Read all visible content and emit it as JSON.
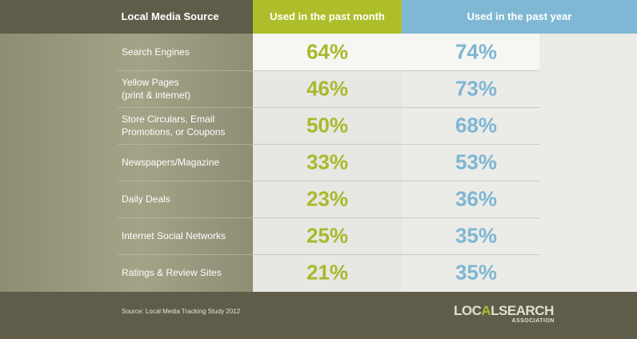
{
  "chart_data": {
    "type": "table",
    "columns": [
      "Local Media Source",
      "Used in the past month",
      "Used in the past year"
    ],
    "rows": [
      {
        "label": "Search Engines",
        "month": "64%",
        "year": "74%"
      },
      {
        "label": "Yellow Pages\n(print & internet)",
        "month": "46%",
        "year": "73%"
      },
      {
        "label": "Store Circulars, Email\nPromotions, or Coupons",
        "month": "50%",
        "year": "68%"
      },
      {
        "label": "Newspapers/Magazine",
        "month": "33%",
        "year": "53%"
      },
      {
        "label": "Daily Deals",
        "month": "23%",
        "year": "36%"
      },
      {
        "label": "Internet Social Networks",
        "month": "25%",
        "year": "35%"
      },
      {
        "label": "Ratings & Review Sites",
        "month": "21%",
        "year": "35%"
      }
    ]
  },
  "footer": {
    "source": "Source: Local Media Tracking Study 2012",
    "logo_text": "LOCALSEARCH",
    "logo_sub": "ASSOCIATION"
  },
  "colors": {
    "month_accent": "#aebe2a",
    "year_accent": "#7fb8d4",
    "background": "#5f5d49"
  }
}
